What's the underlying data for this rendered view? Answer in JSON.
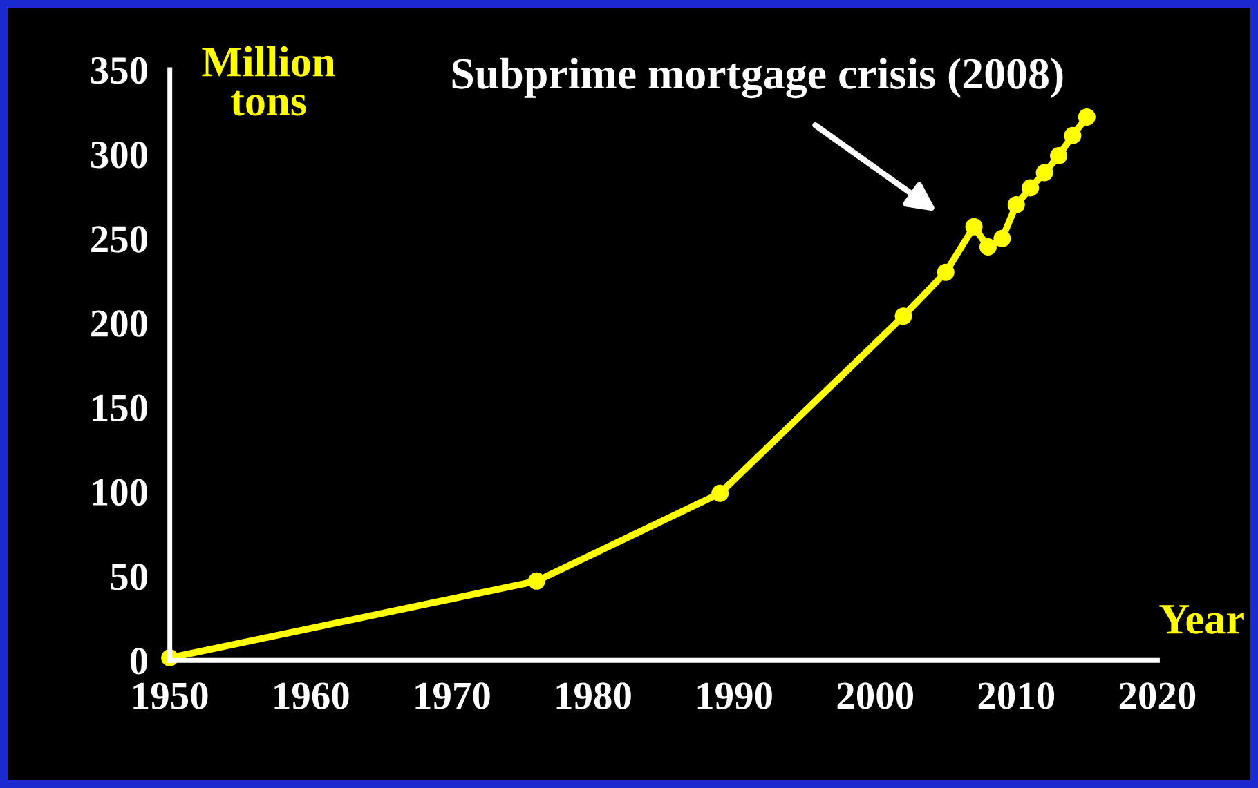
{
  "chart_data": {
    "type": "line",
    "xlabel": "Year",
    "ylabel": "Million\ntons",
    "x": [
      1950,
      1976,
      1989,
      2002,
      2005,
      2007,
      2008,
      2009,
      2010,
      2011,
      2012,
      2013,
      2014,
      2015
    ],
    "series": [
      {
        "color": "#ffff00",
        "values": [
          1.5,
          47,
          99,
          204,
          230,
          257,
          245,
          250,
          270,
          280,
          289,
          299,
          311,
          322
        ]
      }
    ],
    "xlim": [
      1950,
      2020
    ],
    "xticks": [
      1950,
      1960,
      1970,
      1980,
      1990,
      2000,
      2010,
      2020
    ],
    "ylim": [
      0,
      350
    ],
    "yticks": [
      0,
      50,
      100,
      150,
      200,
      250,
      300,
      350
    ],
    "grid": false,
    "legend": false,
    "marker": "circle",
    "line_style": "solid",
    "annotations": [
      "Subprime mortgage crisis (2008)"
    ]
  }
}
